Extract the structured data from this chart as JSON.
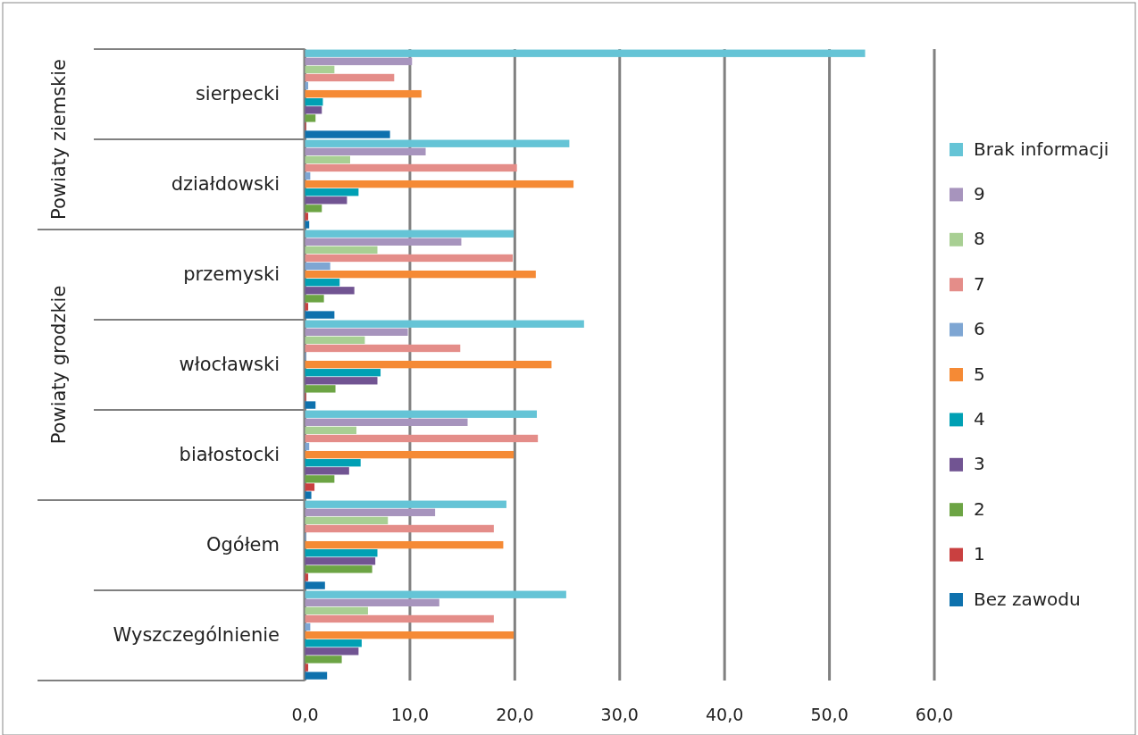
{
  "chart_data": {
    "type": "bar",
    "orientation": "horizontal",
    "categories": [
      "sierpecki",
      "działdowski",
      "przemyski",
      "włocławski",
      "białostocki",
      "Ogółem",
      "Wyszczególnienie"
    ],
    "annotations": [
      "Powiaty ziemskie",
      "Powiaty grodzkie"
    ],
    "series": [
      {
        "name": "Brak informacji",
        "color": "#65c4d6",
        "values": [
          53.4,
          25.2,
          19.9,
          26.6,
          22.1,
          19.2,
          24.9
        ]
      },
      {
        "name": "9",
        "color": "#a794bd",
        "values": [
          10.2,
          11.5,
          14.9,
          9.8,
          15.5,
          12.4,
          12.8
        ]
      },
      {
        "name": "8",
        "color": "#a8cf93",
        "values": [
          2.8,
          4.3,
          6.9,
          5.7,
          4.9,
          7.9,
          6.0
        ]
      },
      {
        "name": "7",
        "color": "#e48d89",
        "values": [
          8.5,
          20.2,
          19.8,
          14.8,
          22.2,
          18.0,
          18.0
        ]
      },
      {
        "name": "6",
        "color": "#7ea6d3",
        "values": [
          0.3,
          0.5,
          2.4,
          0.1,
          0.4,
          0.1,
          0.5
        ]
      },
      {
        "name": "5",
        "color": "#f58a35",
        "values": [
          11.1,
          25.6,
          22.0,
          23.5,
          19.9,
          18.9,
          19.9
        ]
      },
      {
        "name": "4",
        "color": "#00a0b4",
        "values": [
          1.7,
          5.1,
          3.3,
          7.2,
          5.3,
          6.9,
          5.4
        ]
      },
      {
        "name": "3",
        "color": "#715492",
        "values": [
          1.6,
          4.0,
          4.7,
          6.9,
          4.2,
          6.7,
          5.1
        ]
      },
      {
        "name": "2",
        "color": "#6ca444",
        "values": [
          1.0,
          1.6,
          1.8,
          2.9,
          2.8,
          6.4,
          3.5
        ]
      },
      {
        "name": "1",
        "color": "#c94040",
        "values": [
          0.1,
          0.3,
          0.3,
          0.1,
          0.9,
          0.3,
          0.3
        ]
      },
      {
        "name": "Bez zawodu",
        "color": "#0e71ad",
        "values": [
          8.1,
          0.4,
          2.8,
          1.0,
          0.6,
          1.9,
          2.1
        ]
      }
    ],
    "xlim": [
      0,
      60
    ],
    "xticks": [
      {
        "value": 0,
        "label": "0,0"
      },
      {
        "value": 10,
        "label": "10,0"
      },
      {
        "value": 20,
        "label": "20,0"
      },
      {
        "value": 30,
        "label": "30,0"
      },
      {
        "value": 40,
        "label": "40,0"
      },
      {
        "value": 50,
        "label": "50,0"
      },
      {
        "value": 60,
        "label": "60,0"
      }
    ],
    "grid": "x",
    "legend": "right"
  }
}
